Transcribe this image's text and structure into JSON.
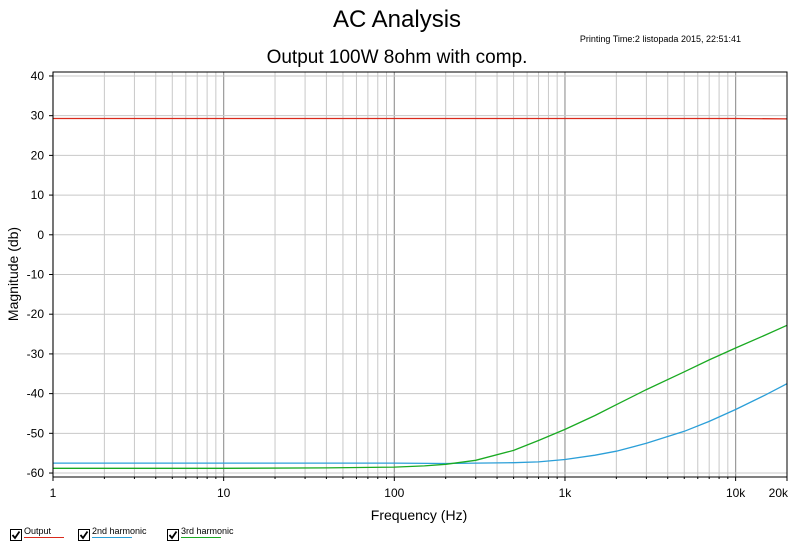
{
  "header": {
    "title": "AC Analysis",
    "subtitle": "Output 100W 8ohm with comp.",
    "printing_time": "Printing Time:2 listopada 2015, 22:51:41"
  },
  "chart_data": {
    "type": "line",
    "title": "Output 100W 8ohm with comp.",
    "xlabel": "Frequency (Hz)",
    "ylabel": "Magnitude (db)",
    "xscale": "log",
    "xlim": [
      1,
      20000
    ],
    "ylim": [
      -61,
      41
    ],
    "x_ticks": [
      {
        "value": 1,
        "label": "1"
      },
      {
        "value": 10,
        "label": "10"
      },
      {
        "value": 100,
        "label": "100"
      },
      {
        "value": 1000,
        "label": "1k"
      },
      {
        "value": 10000,
        "label": "10k"
      },
      {
        "value": 20000,
        "label": "20k"
      }
    ],
    "y_ticks": [
      {
        "value": 40,
        "label": "40"
      },
      {
        "value": 30,
        "label": "30"
      },
      {
        "value": 20,
        "label": "20"
      },
      {
        "value": 10,
        "label": "10"
      },
      {
        "value": 0,
        "label": "0"
      },
      {
        "value": -10,
        "label": "-10"
      },
      {
        "value": -20,
        "label": "-20"
      },
      {
        "value": -30,
        "label": "-30"
      },
      {
        "value": -40,
        "label": "-40"
      },
      {
        "value": -50,
        "label": "-50"
      },
      {
        "value": -60,
        "label": "-60"
      }
    ],
    "grid": true,
    "series": [
      {
        "name": "Output",
        "color": "#d92a1c",
        "x": [
          1,
          10,
          100,
          1000,
          10000,
          20000
        ],
        "y": [
          29.3,
          29.3,
          29.3,
          29.3,
          29.3,
          29.2
        ]
      },
      {
        "name": "2nd harmonic",
        "color": "#2b9fd8",
        "x": [
          1,
          10,
          40,
          100,
          200,
          300,
          500,
          700,
          1000,
          1500,
          2000,
          3000,
          5000,
          7000,
          10000,
          15000,
          20000
        ],
        "y": [
          -57.5,
          -57.5,
          -57.5,
          -57.5,
          -57.6,
          -57.5,
          -57.4,
          -57.2,
          -56.6,
          -55.5,
          -54.5,
          -52.5,
          -49.5,
          -47,
          -44,
          -40.3,
          -37.5
        ]
      },
      {
        "name": "3rd harmonic",
        "color": "#1aaa22",
        "x": [
          1,
          10,
          40,
          100,
          150,
          200,
          300,
          500,
          700,
          1000,
          1500,
          2000,
          3000,
          5000,
          7000,
          10000,
          15000,
          20000
        ],
        "y": [
          -58.8,
          -58.8,
          -58.7,
          -58.5,
          -58.2,
          -57.8,
          -56.8,
          -54.3,
          -51.8,
          -49,
          -45.5,
          -42.8,
          -39,
          -34.5,
          -31.5,
          -28.5,
          -25.2,
          -22.8
        ]
      }
    ],
    "legend_position": "bottom-left"
  },
  "legend": [
    {
      "label": "Output",
      "color": "#d92a1c"
    },
    {
      "label": "2nd harmonic",
      "color": "#2b9fd8"
    },
    {
      "label": "3rd harmonic",
      "color": "#1aaa22"
    }
  ]
}
